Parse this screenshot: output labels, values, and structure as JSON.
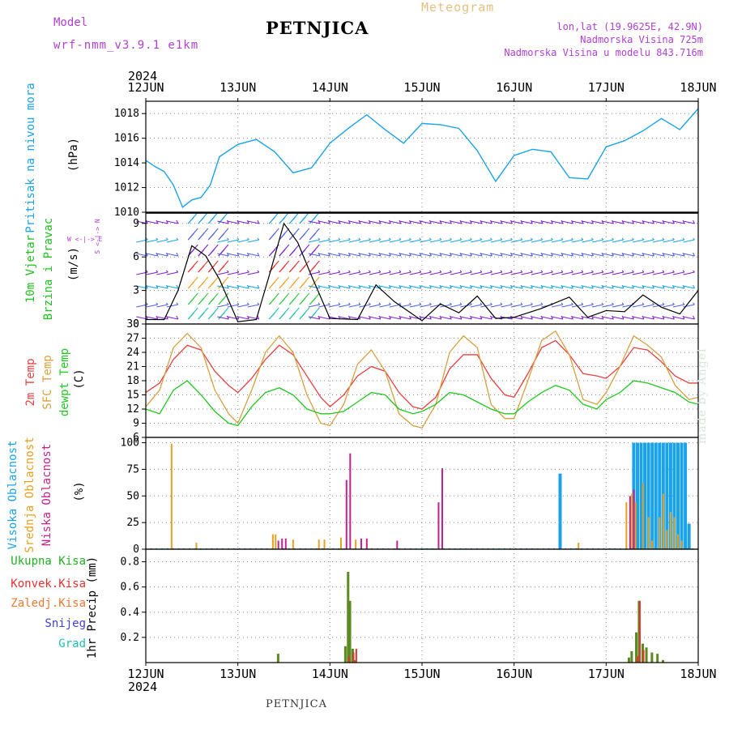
{
  "header": {
    "model_label": "Model",
    "model_name": "wrf-nmm_v3.9.1 e1km",
    "title": "PETNJICA",
    "meteogram": "Meteogram",
    "lonlat": "lon,lat (19.9625E, 42.9N)",
    "altitude": "Nadmorska Visina 725m",
    "altitude_model": "Nadmorska Visina u modelu 843.716m"
  },
  "footer": {
    "station": "PETNJICA"
  },
  "watermark": "made by Angel",
  "colors": {
    "pressure": "#1aa3e8",
    "wind_label": "#20c020",
    "wind_label2": "#f0a020",
    "t2m": "#e84040",
    "tsfc": "#d8a040",
    "dewpt": "#20c820",
    "high_cloud": "#1aa3e8",
    "mid_cloud": "#e8a020",
    "low_cloud": "#c8208c",
    "total_precip": "#20b020",
    "conv_precip": "#e83030",
    "frz_precip": "#f07830",
    "snow": "#4040e0",
    "hail": "#20c0b0",
    "purple": "#b040d0",
    "meteogram": "#e8c080"
  },
  "chart_data": [
    {
      "type": "line",
      "panel": "pressure",
      "ylabel": "Pritisak na nivou mora",
      "unit": "(hPa)",
      "year": "2024",
      "categories": [
        "12JUN",
        "13JUN",
        "14JUN",
        "15JUN",
        "16JUN",
        "17JUN",
        "18JUN"
      ],
      "ylim": [
        1010,
        1019
      ],
      "yticks": [
        1010,
        1012,
        1014,
        1016,
        1018
      ],
      "x": [
        0,
        0.1,
        0.2,
        0.3,
        0.4,
        0.5,
        0.6,
        0.7,
        0.8,
        1.0,
        1.2,
        1.4,
        1.6,
        1.8,
        2.0,
        2.2,
        2.4,
        2.6,
        2.8,
        3.0,
        3.2,
        3.4,
        3.6,
        3.8,
        4.0,
        4.2,
        4.4,
        4.6,
        4.8,
        5.0,
        5.2,
        5.4,
        5.6,
        5.8,
        6.0
      ],
      "values": [
        1014.2,
        1013.7,
        1013.3,
        1012.2,
        1010.4,
        1011.0,
        1011.2,
        1012.2,
        1014.5,
        1015.5,
        1015.9,
        1014.9,
        1013.2,
        1013.6,
        1015.6,
        1016.8,
        1017.9,
        1016.7,
        1015.6,
        1017.2,
        1017.1,
        1016.8,
        1015.0,
        1012.5,
        1014.6,
        1015.1,
        1014.9,
        1012.8,
        1012.7,
        1015.3,
        1015.8,
        1016.6,
        1017.6,
        1016.7,
        1018.4
      ],
      "series": [
        {
          "name": "Pritisak na nivou mora"
        }
      ]
    },
    {
      "type": "line",
      "panel": "wind",
      "ylabel": "10m Vjetar",
      "ylabel2": "Brzina i Pravac",
      "unit": "(m/s)",
      "compass_label": "W <-|-> E",
      "ylim": [
        0,
        10
      ],
      "yticks": [
        0,
        3,
        6,
        9
      ],
      "x": [
        0,
        0.2,
        0.35,
        0.5,
        0.65,
        0.8,
        1.0,
        1.2,
        1.35,
        1.5,
        1.65,
        1.8,
        2.0,
        2.3,
        2.5,
        2.7,
        3.0,
        3.2,
        3.4,
        3.6,
        3.8,
        4.0,
        4.3,
        4.6,
        4.8,
        5.0,
        5.2,
        5.4,
        5.6,
        5.8,
        6.0
      ],
      "values": [
        0.4,
        0.4,
        3.0,
        7.0,
        6.1,
        4.0,
        0.2,
        0.4,
        4.6,
        9.0,
        7.3,
        4.3,
        0.5,
        0.4,
        3.5,
        2.0,
        0.3,
        1.8,
        1.0,
        2.5,
        0.5,
        0.6,
        1.4,
        2.4,
        0.6,
        1.2,
        1.1,
        2.6,
        1.5,
        0.9,
        3.0
      ]
    },
    {
      "type": "line",
      "panel": "temperature",
      "ylabel": "2m Temp",
      "ylabel2": "SFC Temp",
      "ylabel3": "dewpt Temp",
      "unit": "(C)",
      "ylim": [
        6,
        30
      ],
      "yticks": [
        6,
        9,
        12,
        15,
        18,
        21,
        24,
        27,
        30
      ],
      "x": [
        0,
        0.15,
        0.3,
        0.45,
        0.6,
        0.75,
        0.9,
        1.0,
        1.15,
        1.3,
        1.45,
        1.6,
        1.75,
        1.9,
        2.0,
        2.15,
        2.3,
        2.45,
        2.6,
        2.75,
        2.9,
        3.0,
        3.15,
        3.3,
        3.45,
        3.6,
        3.75,
        3.9,
        4.0,
        4.15,
        4.3,
        4.45,
        4.6,
        4.75,
        4.9,
        5.0,
        5.15,
        5.3,
        5.45,
        5.6,
        5.75,
        5.9,
        6.0
      ],
      "series": [
        {
          "name": "2m Temp",
          "values": [
            15.5,
            17.5,
            22.5,
            25.5,
            24.5,
            20.0,
            17.0,
            15.5,
            18.5,
            22.5,
            25.5,
            23.5,
            19.0,
            14.5,
            12.5,
            15.0,
            19.0,
            21.0,
            20.0,
            15.5,
            12.5,
            12.0,
            14.5,
            20.5,
            23.5,
            23.5,
            18.5,
            15.0,
            14.5,
            19.5,
            25.0,
            26.5,
            23.5,
            19.5,
            19.0,
            18.5,
            21.0,
            25.0,
            24.5,
            22.0,
            19.0,
            17.5,
            17.5
          ]
        },
        {
          "name": "SFC Temp",
          "values": [
            12.5,
            16.0,
            25.0,
            28.0,
            25.0,
            16.0,
            11.0,
            9.0,
            16.0,
            24.0,
            27.5,
            24.0,
            15.0,
            9.0,
            8.5,
            13.0,
            21.5,
            24.5,
            20.0,
            11.0,
            8.5,
            8.0,
            13.0,
            24.0,
            27.5,
            25.0,
            13.0,
            10.0,
            10.0,
            18.0,
            26.5,
            28.5,
            23.5,
            14.0,
            13.0,
            15.5,
            21.0,
            27.5,
            25.5,
            23.0,
            17.0,
            14.0,
            14.5
          ]
        },
        {
          "name": "dewpt Temp",
          "values": [
            12.0,
            11.0,
            16.0,
            18.0,
            15.0,
            11.5,
            9.0,
            8.5,
            12.5,
            15.5,
            16.5,
            15.0,
            12.0,
            11.0,
            11.0,
            11.5,
            13.5,
            15.5,
            15.0,
            12.0,
            11.0,
            11.5,
            13.0,
            15.5,
            15.0,
            13.5,
            12.0,
            11.0,
            11.0,
            13.5,
            15.5,
            17.0,
            16.0,
            13.0,
            12.0,
            14.0,
            15.5,
            18.0,
            17.5,
            16.5,
            15.5,
            13.5,
            13.0
          ]
        }
      ]
    },
    {
      "type": "bar",
      "panel": "cloud",
      "ylabel": "Visoka Oblacnost",
      "ylabel2": "Srednja Oblacnost",
      "ylabel3": "Niska Oblacnost",
      "unit": "(%)",
      "ylim": [
        0,
        105
      ],
      "yticks": [
        0,
        25,
        50,
        75,
        100
      ],
      "series": [
        {
          "name": "Visoka Oblacnost",
          "x": [
            3.0,
            3.04,
            3.08,
            3.12,
            3.16,
            3.2,
            4.5,
            5.3,
            5.34,
            5.38,
            5.42,
            5.46,
            5.5,
            5.54,
            5.58,
            5.62,
            5.66,
            5.7,
            5.74,
            5.78,
            5.82,
            5.86,
            5.9
          ],
          "values": [
            0.5,
            0.5,
            0.5,
            0.5,
            0.5,
            0.5,
            71,
            100,
            100,
            100,
            100,
            100,
            100,
            100,
            100,
            100,
            100,
            100,
            100,
            100,
            100,
            100,
            24
          ]
        },
        {
          "name": "Srednja Oblacnost",
          "x": [
            0.28,
            0.55,
            1.38,
            1.41,
            1.6,
            1.88,
            1.94,
            2.12,
            2.28,
            4.7,
            5.22,
            5.28,
            5.32,
            5.4,
            5.46,
            5.5,
            5.58,
            5.62,
            5.66,
            5.7,
            5.74,
            5.78,
            5.82
          ],
          "values": [
            99,
            6,
            14,
            14,
            9,
            9,
            9,
            11,
            9,
            6,
            44,
            52,
            44,
            62,
            30,
            8,
            30,
            52,
            18,
            35,
            30,
            14,
            8
          ]
        },
        {
          "name": "Niska Oblacnost",
          "x": [
            1.44,
            1.48,
            1.52,
            2.18,
            2.22,
            2.34,
            2.4,
            2.73,
            3.18,
            3.22,
            5.26,
            5.3
          ],
          "values": [
            8,
            10,
            10,
            65,
            90,
            10,
            10,
            8,
            44,
            76,
            50,
            56
          ]
        }
      ]
    },
    {
      "type": "bar",
      "panel": "precip",
      "ylabel": "1hr Precip",
      "unit": "(mm)",
      "ylim": [
        0,
        0.9
      ],
      "yticks": [
        0.2,
        0.4,
        0.6,
        0.8
      ],
      "legend": [
        "Ukupna Kisa",
        "Konvek.Kisa",
        "Zaledj.Kisa",
        "Snijeg",
        "Grad"
      ],
      "series": [
        {
          "name": "Ukupna Kisa",
          "x": [
            1.44,
            2.17,
            2.2,
            2.22,
            2.25,
            2.28,
            5.25,
            5.28,
            5.33,
            5.36,
            5.4,
            5.44,
            5.5,
            5.56,
            5.62
          ],
          "values": [
            0.07,
            0.13,
            0.72,
            0.49,
            0.11,
            0.02,
            0.04,
            0.09,
            0.24,
            0.49,
            0.15,
            0.12,
            0.08,
            0.07,
            0.02
          ]
        },
        {
          "name": "Konvek.Kisa",
          "x": [
            2.2,
            2.25,
            2.28,
            5.33,
            5.36,
            5.4
          ],
          "values": [
            0.05,
            0.08,
            0.11,
            0.05,
            0.49,
            0.1
          ]
        }
      ],
      "xcategories": [
        "12JUN",
        "13JUN",
        "14JUN",
        "15JUN",
        "16JUN",
        "17JUN",
        "18JUN"
      ],
      "year": "2024"
    }
  ]
}
